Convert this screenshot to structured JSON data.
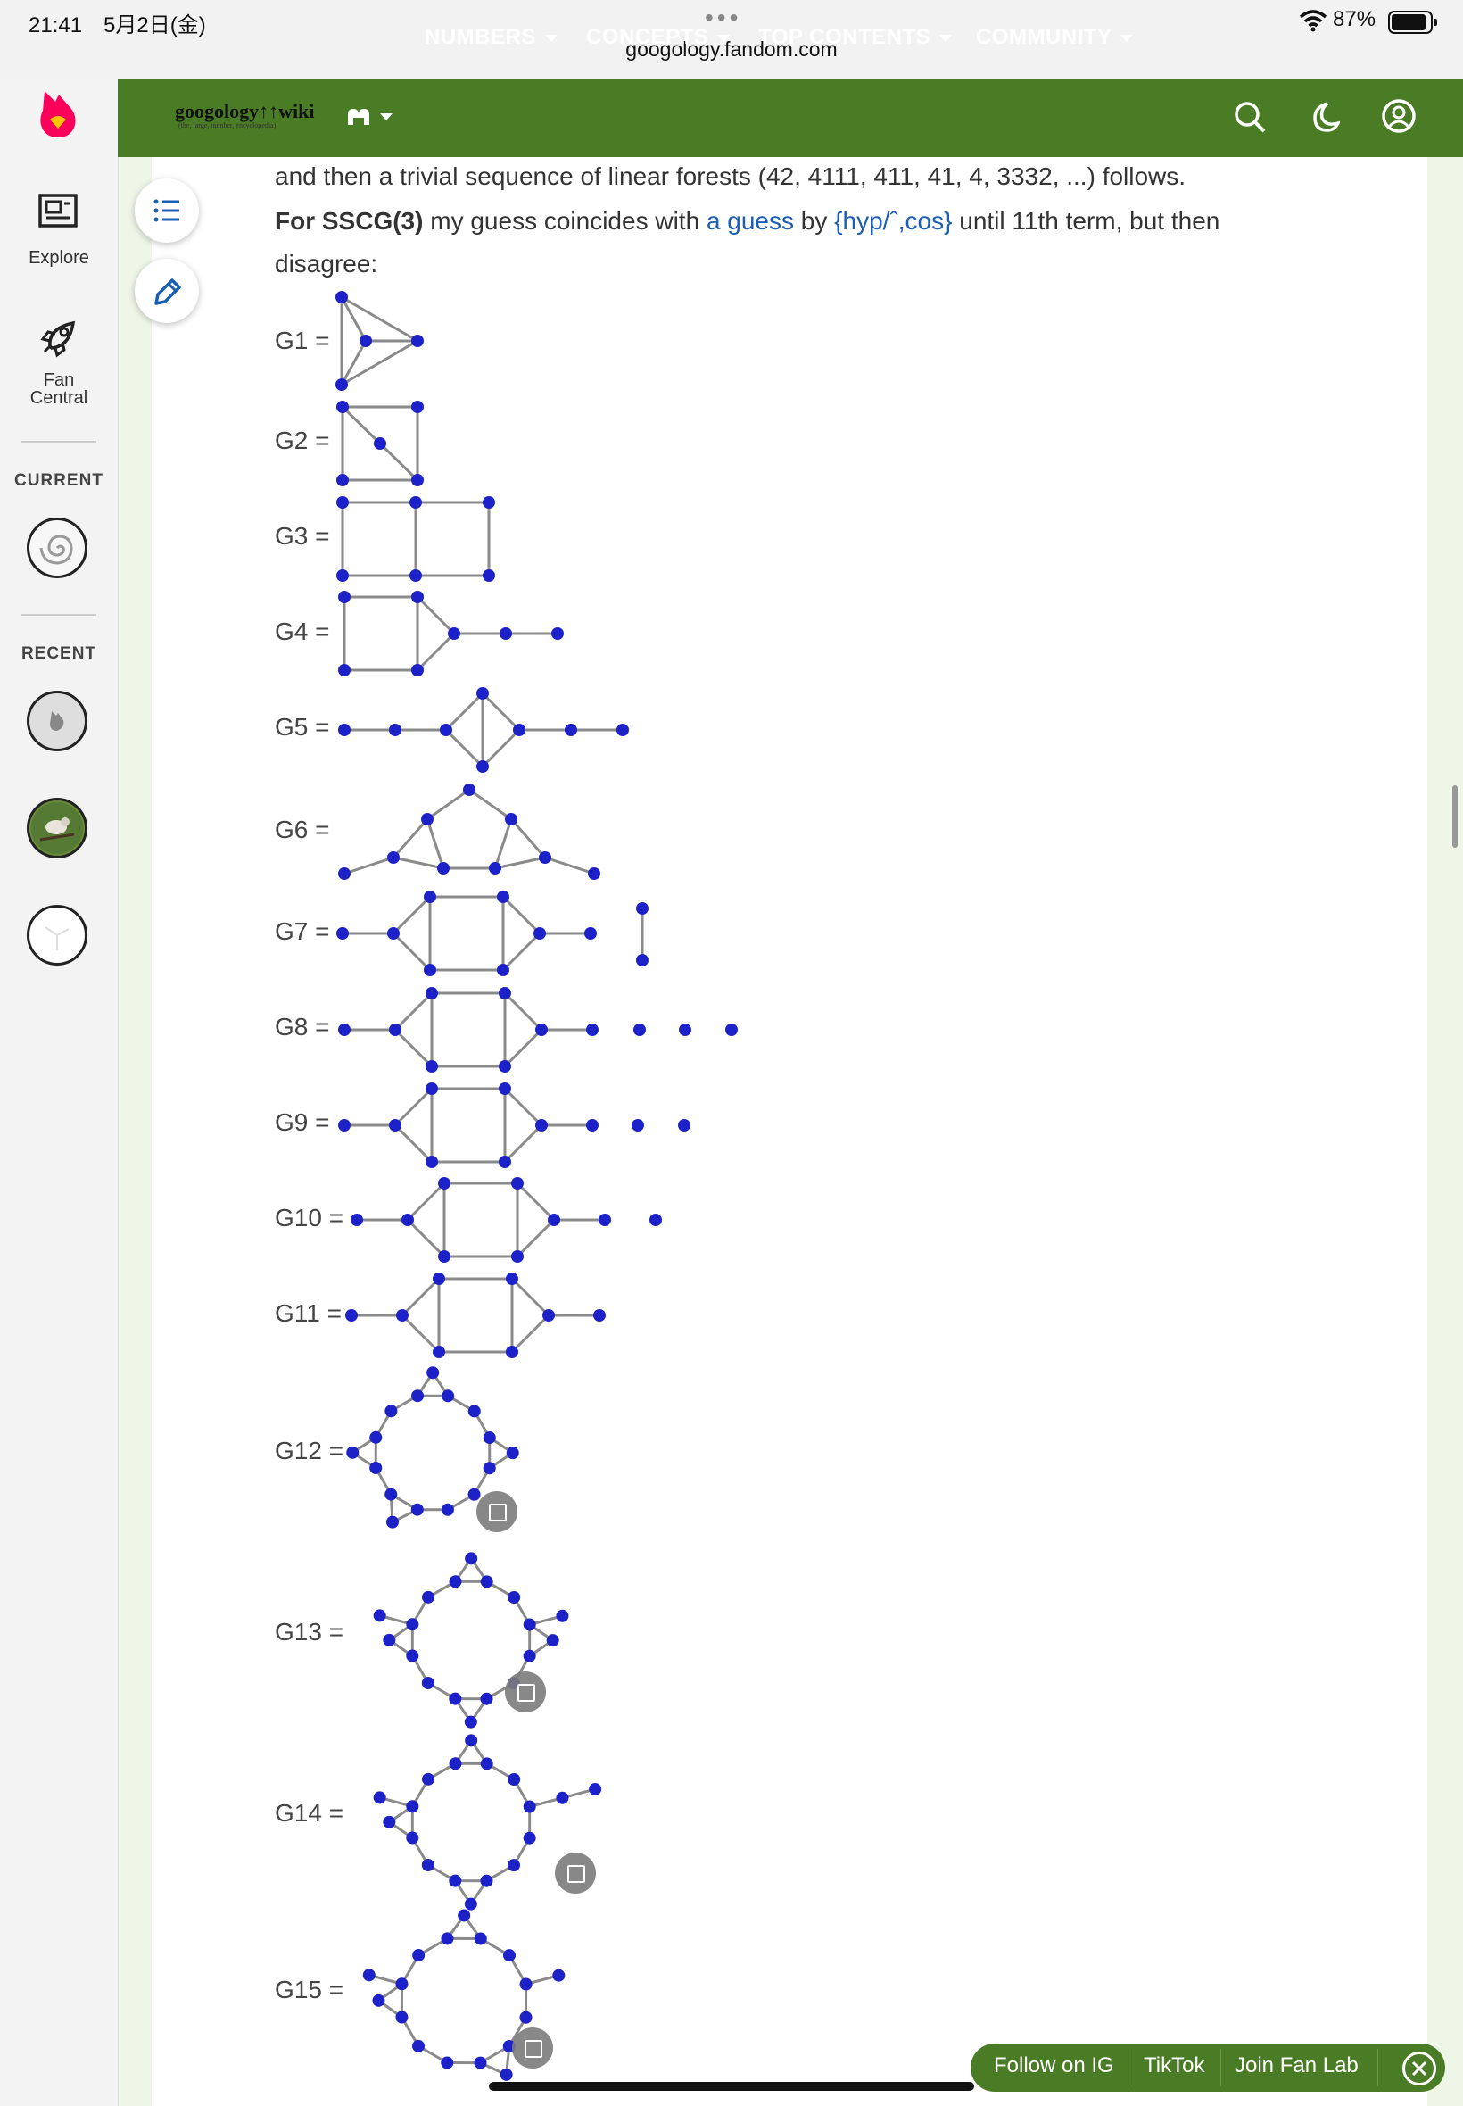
{
  "status_bar": {
    "time": "21:41　5月2日(金)",
    "url": "googology.fandom.com",
    "battery": "87%"
  },
  "rail": {
    "explore": "Explore",
    "fan_central": "Fan Central",
    "current": "CURRENT",
    "recent": "RECENT"
  },
  "nav": {
    "logo": "googology↑↑wiki",
    "logo_sub": "(the, large, number, encyclopedia)",
    "items": [
      "NUMBERS",
      "CONCEPTS",
      "TOP CONTENTS",
      "COMMUNITY"
    ]
  },
  "content": {
    "line1": "and then a trivial sequence of linear forests (42, 4111, 411, 41, 4, 3332, ...) follows.",
    "for_sscg": "For SSCG(3)",
    "mid": " my guess coincides with ",
    "link1": "a guess",
    "by": " by ",
    "link2": "{hyp/ˆ,cos}",
    "tail": " until 11th term, but then",
    "line3": "disagree:",
    "graph_labels": [
      "G1 =",
      "G2 =",
      "G3 =",
      "G4 =",
      "G5 =",
      "G6 =",
      "G7 =",
      "G8 =",
      "G9 =",
      "G10 =",
      "G11 =",
      "G12 =",
      "G13 =",
      "G14 =",
      "G15 ="
    ]
  },
  "footer": {
    "follow_ig": "Follow on IG",
    "tiktok": "TikTok",
    "join": "Join Fan Lab"
  },
  "colors": {
    "nav_green": "#4a7b25",
    "node_blue": "#1d22c8",
    "link_blue": "#1a5fb4",
    "fandom_pink": "#fa005a"
  }
}
